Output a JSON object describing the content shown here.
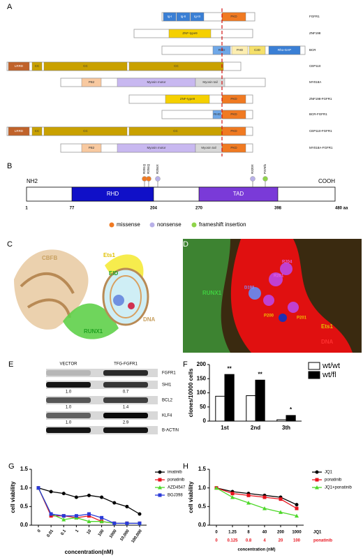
{
  "panels": {
    "A": {
      "label": "A",
      "rows": [
        {
          "name": "FGFR1",
          "domains": [
            "Ig-I",
            "Ig-II",
            "Ig-III",
            "PKD"
          ]
        },
        {
          "name": "ZNF198",
          "domains": [
            "ZNF-type9"
          ]
        },
        {
          "name": "BCR",
          "domains": [
            "RHD",
            "PHD",
            "C2D",
            "Rho-GAP"
          ]
        },
        {
          "name": "CEP110",
          "domains": [
            "LRRD",
            "CC",
            "CC",
            "CC"
          ]
        },
        {
          "name": "MY018A",
          "domains": [
            "PB2",
            "Myosin motor",
            "Myosin tail"
          ]
        },
        {
          "name": "ZNF198-FGFR1",
          "domains": [
            "ZNF-type9",
            "PKD"
          ]
        },
        {
          "name": "BCR-FGFR1",
          "domains": [
            "RHD",
            "PKD"
          ]
        },
        {
          "name": "CEP110-FGFR1",
          "domains": [
            "LRRD",
            "CC",
            "CC",
            "CC",
            "PKD"
          ]
        },
        {
          "name": "MY018A-FGFR1",
          "domains": [
            "PB2",
            "Myosin motor",
            "Myosin tail",
            "PKD"
          ]
        }
      ]
    },
    "B": {
      "label": "B",
      "start_label": "NH2",
      "end_label": "COOH",
      "positions": [
        "1",
        "77",
        "204",
        "270",
        "398",
        "480 aa"
      ],
      "domains": [
        "RHD",
        "TAD"
      ],
      "mutations": [
        {
          "label": "R201Q",
          "type": 0
        },
        {
          "label": "R204Q",
          "type": 0
        },
        {
          "label": "R204X",
          "type": 1
        },
        {
          "label": "R320X",
          "type": 1
        },
        {
          "label": "P376fs",
          "type": 2
        }
      ],
      "legend": [
        {
          "name": "missense",
          "color": "#f07a22"
        },
        {
          "name": "nonsense",
          "color": "#b8b0e8"
        },
        {
          "name": "frameshift insertion",
          "color": "#8fd44a"
        }
      ]
    },
    "C": {
      "label": "C",
      "labels": [
        "CBFB",
        "Ets1",
        "EID",
        "RUNX1",
        "DNA"
      ]
    },
    "D": {
      "label": "D",
      "labels": [
        "RUNX1",
        "Ets1",
        "DNA",
        "P200",
        "P201",
        "R201",
        "R204",
        "D198"
      ]
    },
    "E": {
      "label": "E",
      "columns": [
        "VECTOR",
        "TFG-FGFR1"
      ],
      "rows": [
        {
          "name": "FGFR1"
        },
        {
          "name": "SHI1",
          "numbers": [
            "1.0",
            "0.7"
          ]
        },
        {
          "name": "BCL2",
          "numbers": [
            "1.0",
            "1.4"
          ]
        },
        {
          "name": "KLF4",
          "numbers": [
            "1.0",
            "2.9"
          ]
        },
        {
          "name": "B-ACTIN"
        }
      ]
    },
    "F": {
      "label": "F"
    },
    "G": {
      "label": "G"
    },
    "H": {
      "label": "H"
    }
  },
  "chart_data": [
    {
      "type": "bar",
      "ylabel": "clones/10000 cells",
      "categories": [
        "1st",
        "2nd",
        "3th"
      ],
      "series": [
        {
          "name": "wt/wt",
          "color": "#ffffff",
          "values": [
            88,
            90,
            5
          ]
        },
        {
          "name": "wt/fl",
          "color": "#000000",
          "values": [
            165,
            145,
            20
          ]
        }
      ],
      "annotations": [
        "**",
        "**",
        "*"
      ],
      "ylim": [
        0,
        200
      ],
      "yticks": [
        0,
        50,
        100,
        150,
        200
      ],
      "legend": "top-right"
    },
    {
      "type": "line",
      "xlabel": "concentration(nM)",
      "ylabel": "cell viability",
      "categories": [
        "0",
        "0.01",
        "0.1",
        "1",
        "10",
        "100",
        "1000",
        "10,000",
        "100,000"
      ],
      "series": [
        {
          "name": "imatinib",
          "color": "#000000",
          "marker": "circle",
          "values": [
            1.0,
            0.9,
            0.85,
            0.75,
            0.8,
            0.75,
            0.6,
            0.5,
            0.3
          ]
        },
        {
          "name": "ponatinib",
          "color": "#e8141e",
          "marker": "square",
          "values": [
            1.0,
            0.25,
            0.25,
            0.2,
            0.25,
            0.1,
            0.05,
            0.05,
            0.05
          ]
        },
        {
          "name": "AZD4547",
          "color": "#4ed82a",
          "marker": "triangle",
          "values": [
            1.0,
            0.3,
            0.15,
            0.2,
            0.1,
            0.1,
            0.05,
            0.05,
            0.05
          ]
        },
        {
          "name": "BGJ398",
          "color": "#2a3ad8",
          "marker": "square",
          "values": [
            1.0,
            0.3,
            0.25,
            0.25,
            0.3,
            0.2,
            0.05,
            0.05,
            0.05
          ]
        }
      ],
      "ylim": [
        0,
        1.5
      ],
      "yticks": [
        {
          "value": 0,
          "label": "0.0"
        },
        0.5,
        {
          "value": 1,
          "label": "1.0"
        },
        1.5
      ],
      "legend": "right"
    },
    {
      "type": "line",
      "xlabel": "concentration (nM)",
      "ylabel": "cell viability",
      "categories": [
        "0",
        "1.25",
        "8",
        "40",
        "200",
        "1000"
      ],
      "category_rows": [
        {
          "name": "JQ1",
          "color": "#000000",
          "labels": [
            "0",
            "1.25",
            "8",
            "40",
            "200",
            "1000"
          ]
        },
        {
          "name": "ponatinib",
          "color": "#e8141e",
          "labels": [
            "0",
            "0.125",
            "0.8",
            "4",
            "20",
            "100"
          ]
        }
      ],
      "series": [
        {
          "name": "JQ1",
          "color": "#000000",
          "marker": "circle",
          "values": [
            1.0,
            0.9,
            0.85,
            0.8,
            0.75,
            0.55
          ]
        },
        {
          "name": "ponatinib",
          "color": "#e8141e",
          "marker": "square",
          "values": [
            1.0,
            0.85,
            0.8,
            0.75,
            0.7,
            0.45
          ]
        },
        {
          "name": "JQ1+ponatinib",
          "color": "#4ed82a",
          "marker": "triangle",
          "values": [
            1.0,
            0.75,
            0.6,
            0.45,
            0.35,
            0.25
          ]
        }
      ],
      "ylim": [
        0,
        1.5
      ],
      "yticks": [
        {
          "value": 0,
          "label": "0.0"
        },
        0.5,
        {
          "value": 1,
          "label": "1.0"
        },
        1.5
      ],
      "legend": "right"
    }
  ]
}
